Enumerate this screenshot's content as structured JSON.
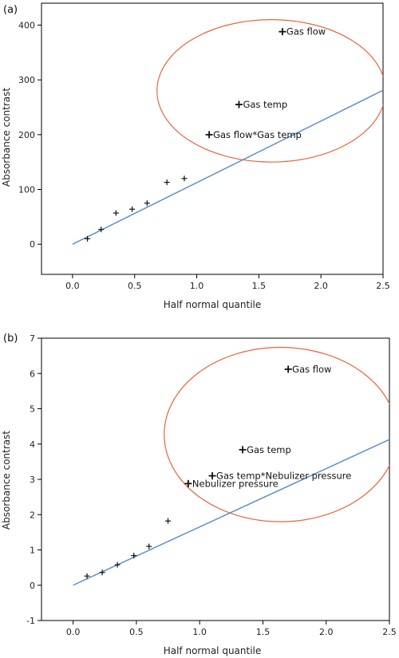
{
  "chart_data": [
    {
      "type": "scatter",
      "panel_label": "(a)",
      "xlabel": "Half normal quantile",
      "ylabel": "Absorbance contrast",
      "xlim": [
        -0.25,
        2.5
      ],
      "ylim": [
        -55,
        440
      ],
      "xticks": [
        0.0,
        0.5,
        1.0,
        1.5,
        2.0,
        2.5
      ],
      "xtick_labels": [
        "0.0",
        "0.5",
        "1.0",
        "1.5",
        "2.0",
        "2.5"
      ],
      "yticks": [
        0,
        100,
        200,
        300,
        400
      ],
      "ytick_labels": [
        "0",
        "100",
        "200",
        "300",
        "400"
      ],
      "grid": false,
      "points": [
        {
          "x": 0.12,
          "y": 10
        },
        {
          "x": 0.23,
          "y": 27
        },
        {
          "x": 0.35,
          "y": 57
        },
        {
          "x": 0.48,
          "y": 64
        },
        {
          "x": 0.6,
          "y": 75
        },
        {
          "x": 0.76,
          "y": 113
        },
        {
          "x": 0.9,
          "y": 120
        },
        {
          "x": 1.1,
          "y": 200,
          "label": "Gas flow*Gas temp"
        },
        {
          "x": 1.34,
          "y": 255,
          "label": "Gas temp"
        },
        {
          "x": 1.69,
          "y": 388,
          "label": "Gas flow"
        }
      ],
      "fit_line": {
        "x": [
          0,
          2.5
        ],
        "y": [
          0,
          281
        ]
      },
      "highlight_ellipse": {
        "cx": 1.6,
        "cy": 280,
        "rx": 0.92,
        "ry": 130
      },
      "colors": {
        "line": "#5b8fc9",
        "ellipse": "#e8643c",
        "points": "#111111"
      }
    },
    {
      "type": "scatter",
      "panel_label": "(b)",
      "xlabel": "Half normal quantile",
      "ylabel": "Absorbance contrast",
      "xlim": [
        -0.25,
        2.5
      ],
      "ylim": [
        -1,
        7
      ],
      "xticks": [
        0.0,
        0.5,
        1.0,
        1.5,
        2.0,
        2.5
      ],
      "xtick_labels": [
        "0.0",
        "0.5",
        "1.0",
        "1.5",
        "2.0",
        "2.5"
      ],
      "yticks": [
        -1,
        0,
        1,
        2,
        3,
        4,
        5,
        6,
        7
      ],
      "ytick_labels": [
        "-1",
        "0",
        "1",
        "2",
        "3",
        "4",
        "5",
        "6",
        "7"
      ],
      "grid": false,
      "points": [
        {
          "x": 0.11,
          "y": 0.26
        },
        {
          "x": 0.23,
          "y": 0.36
        },
        {
          "x": 0.35,
          "y": 0.58
        },
        {
          "x": 0.48,
          "y": 0.84
        },
        {
          "x": 0.6,
          "y": 1.1
        },
        {
          "x": 0.75,
          "y": 1.82
        },
        {
          "x": 0.91,
          "y": 2.88,
          "label": "Nebulizer pressure"
        },
        {
          "x": 1.1,
          "y": 3.1,
          "label": "Gas temp*Nebulizer pressure"
        },
        {
          "x": 1.34,
          "y": 3.84,
          "label": "Gas temp"
        },
        {
          "x": 1.7,
          "y": 6.12,
          "label": "Gas flow"
        }
      ],
      "fit_line": {
        "x": [
          0,
          2.5
        ],
        "y": [
          0,
          4.13
        ]
      },
      "highlight_ellipse": {
        "cx": 1.64,
        "cy": 4.27,
        "rx": 0.92,
        "ry": 2.47
      },
      "colors": {
        "line": "#5b8fc9",
        "ellipse": "#e8643c",
        "points": "#111111"
      }
    }
  ]
}
